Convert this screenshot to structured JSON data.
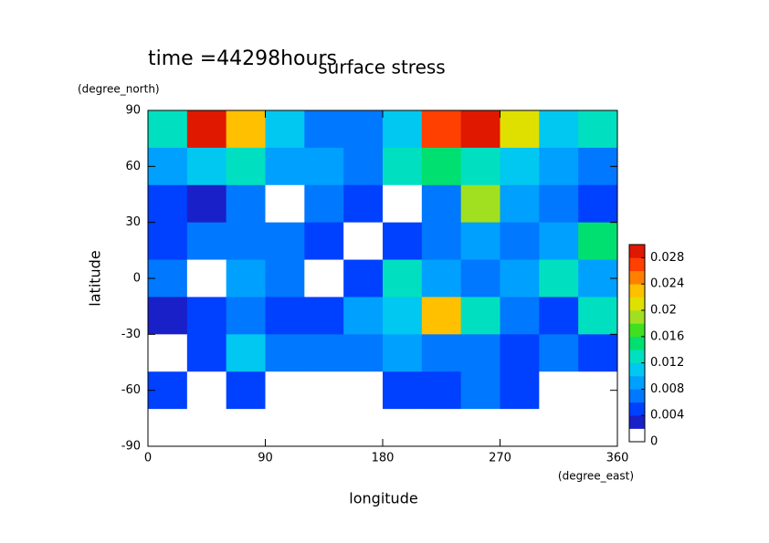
{
  "chart_data": {
    "type": "heatmap",
    "title": "surface stress",
    "subtitle": "time =44298hours",
    "y_label": "latitude",
    "y_unit": "(degree_north)",
    "x_label": "longitude",
    "x_unit": "(degree_east)",
    "xlim": [
      0,
      360
    ],
    "xticks": [
      0,
      90,
      180,
      270,
      360
    ],
    "ylim": [
      -90,
      90
    ],
    "yticks": [
      -90,
      -60,
      -30,
      0,
      30,
      60,
      90
    ],
    "x": [
      15,
      45,
      75,
      105,
      135,
      165,
      195,
      225,
      255,
      285,
      315,
      345
    ],
    "y": [
      80,
      60,
      40,
      20,
      0,
      -20,
      -40,
      -60,
      -80
    ],
    "values": [
      [
        0.012,
        0.028,
        0.022,
        0.01,
        0.006,
        0.006,
        0.01,
        0.026,
        0.03,
        0.02,
        0.01,
        0.012
      ],
      [
        0.008,
        0.01,
        0.012,
        0.008,
        0.008,
        0.006,
        0.012,
        0.014,
        0.012,
        0.01,
        0.008,
        0.006
      ],
      [
        0.004,
        0.002,
        0.006,
        0.001,
        0.006,
        0.004,
        0.001,
        0.006,
        0.018,
        0.008,
        0.006,
        0.004
      ],
      [
        0.004,
        0.006,
        0.006,
        0.006,
        0.004,
        0.001,
        0.004,
        0.006,
        0.008,
        0.006,
        0.008,
        0.014
      ],
      [
        0.006,
        0.001,
        0.008,
        0.006,
        0.001,
        0.004,
        0.012,
        0.008,
        0.006,
        0.008,
        0.012,
        0.008
      ],
      [
        0.002,
        0.004,
        0.006,
        0.004,
        0.004,
        0.008,
        0.01,
        0.022,
        0.012,
        0.006,
        0.004,
        0.012
      ],
      [
        0.001,
        0.004,
        0.01,
        0.006,
        0.006,
        0.006,
        0.008,
        0.006,
        0.006,
        0.004,
        0.006,
        0.004
      ],
      [
        0.004,
        0.001,
        0.004,
        0.001,
        0.001,
        0.001,
        0.004,
        0.004,
        0.006,
        0.004,
        0.001,
        0.001
      ],
      [
        0,
        0,
        0,
        0,
        0,
        0,
        0,
        0,
        0,
        0,
        0,
        0
      ]
    ],
    "clim": [
      0,
      0.03
    ],
    "cticks": [
      0,
      0.004,
      0.008,
      0.012,
      0.016,
      0.02,
      0.024,
      0.028
    ],
    "colors": [
      "#ffffff",
      "#1a20c8",
      "#0040ff",
      "#0078ff",
      "#00a0ff",
      "#00c8f0",
      "#00e0c0",
      "#00e070",
      "#40e020",
      "#a0e020",
      "#e0e000",
      "#ffc000",
      "#ff8000",
      "#ff4000",
      "#e01800"
    ]
  }
}
